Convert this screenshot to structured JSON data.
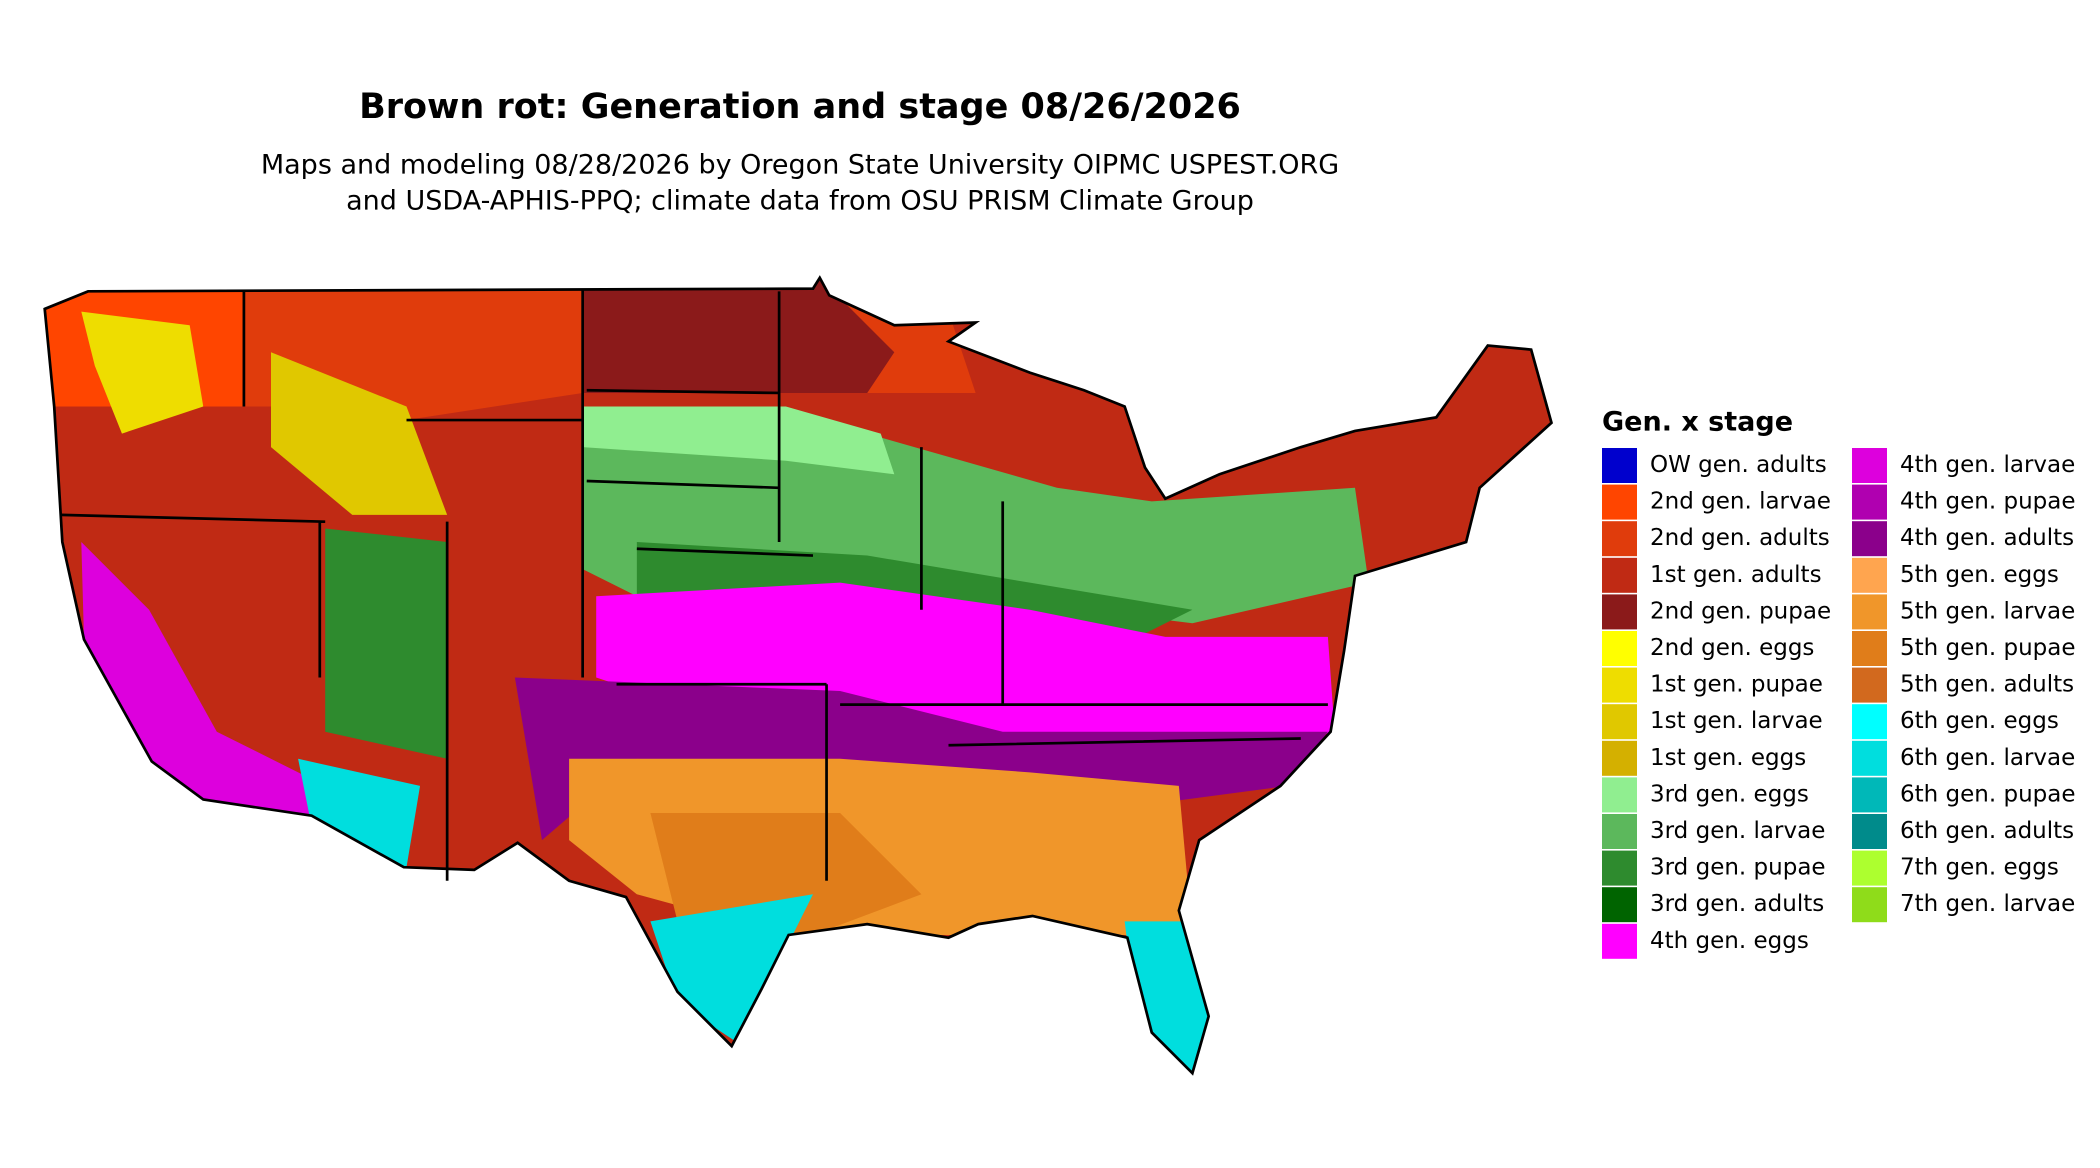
{
  "title": "Brown rot: Generation and stage 08/26/2026",
  "subtitle": [
    "Maps and modeling 08/28/2026 by Oregon State University OIPMC USPEST.ORG",
    "and USDA-APHIS-PPQ; climate data from OSU PRISM Climate Group"
  ],
  "legend": {
    "title": "Gen. x stage",
    "items": [
      {
        "label": "OW gen. adults",
        "color": "#0000cd"
      },
      {
        "label": "2nd gen. larvae",
        "color": "#ff4500"
      },
      {
        "label": "2nd gen. adults",
        "color": "#e03c0c"
      },
      {
        "label": "1st gen. adults",
        "color": "#c02a14"
      },
      {
        "label": "2nd gen. pupae",
        "color": "#8b1a1a"
      },
      {
        "label": "2nd gen. eggs",
        "color": "#ffff00"
      },
      {
        "label": "1st gen. pupae",
        "color": "#eedd00"
      },
      {
        "label": "1st gen. larvae",
        "color": "#e0c800"
      },
      {
        "label": "1st gen. eggs",
        "color": "#d4b000"
      },
      {
        "label": "3rd gen. eggs",
        "color": "#90ee90"
      },
      {
        "label": "3rd gen. larvae",
        "color": "#5cb85c"
      },
      {
        "label": "3rd gen. pupae",
        "color": "#2e8b2e"
      },
      {
        "label": "3rd gen. adults",
        "color": "#006400"
      },
      {
        "label": "4th gen. eggs",
        "color": "#ff00ff"
      },
      {
        "label": "4th gen. larvae",
        "color": "#dd00dd"
      },
      {
        "label": "4th gen. pupae",
        "color": "#b000b0"
      },
      {
        "label": "4th gen. adults",
        "color": "#8b008b"
      },
      {
        "label": "5th gen. eggs",
        "color": "#ffa54f"
      },
      {
        "label": "5th gen. larvae",
        "color": "#f0962a"
      },
      {
        "label": "5th gen. pupae",
        "color": "#e07d1a"
      },
      {
        "label": "5th gen. adults",
        "color": "#d2691e"
      },
      {
        "label": "6th gen. eggs",
        "color": "#00ffff"
      },
      {
        "label": "6th gen. larvae",
        "color": "#00dede"
      },
      {
        "label": "6th gen. pupae",
        "color": "#00b8b8"
      },
      {
        "label": "6th gen. adults",
        "color": "#008b8b"
      },
      {
        "label": "7th gen. eggs",
        "color": "#adff2f"
      },
      {
        "label": "7th gen. larvae",
        "color": "#8fdc1a"
      }
    ]
  }
}
